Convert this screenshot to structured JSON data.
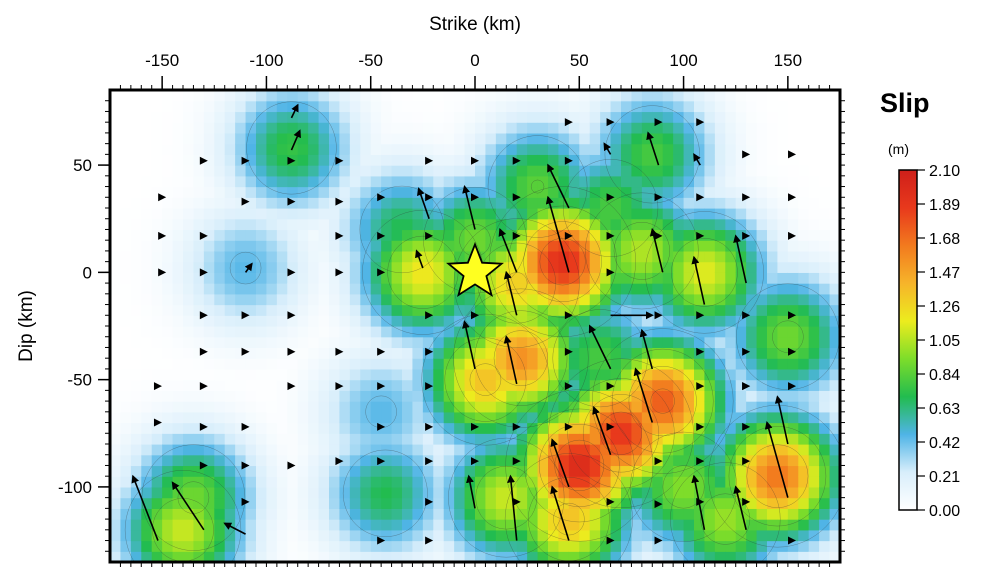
{
  "chart_data": {
    "type": "heatmap",
    "title": "",
    "xlabel": "Strike (km)",
    "ylabel": "Dip (km)",
    "xlim": [
      -175,
      175
    ],
    "ylim": [
      -135,
      85
    ],
    "xticks": [
      -150,
      -100,
      -50,
      0,
      50,
      100,
      150
    ],
    "yticks": [
      50,
      0,
      -50,
      -100
    ],
    "x_axis_position": "top",
    "grid": false,
    "colorbar": {
      "title": "Slip",
      "unit": "(m)",
      "placement": "right",
      "ticks": [
        "2.10",
        "1.89",
        "1.68",
        "1.47",
        "1.26",
        "1.05",
        "0.84",
        "0.63",
        "0.42",
        "0.21",
        "0.00"
      ],
      "range": [
        0,
        2.1
      ],
      "colors": [
        "#ffffff",
        "#d8eefb",
        "#4fb4e6",
        "#22bc4f",
        "#7ddd2a",
        "#ecec1e",
        "#f6b42a",
        "#f27a1e",
        "#e8391c",
        "#cf1f1a"
      ]
    },
    "hypocenter": {
      "x": 0,
      "y": 0,
      "marker": "star",
      "color": "#ffff20"
    },
    "slip_patches": [
      {
        "x": -88,
        "y": 58,
        "slip": 0.75
      },
      {
        "x": -110,
        "y": 2,
        "slip": 0.45
      },
      {
        "x": -45,
        "y": -65,
        "slip": 0.45
      },
      {
        "x": -43,
        "y": -103,
        "slip": 0.7
      },
      {
        "x": -140,
        "y": -120,
        "slip": 1.1
      },
      {
        "x": -135,
        "y": -105,
        "slip": 0.9
      },
      {
        "x": -25,
        "y": 0,
        "slip": 1.2
      },
      {
        "x": -35,
        "y": 20,
        "slip": 0.7
      },
      {
        "x": 0,
        "y": 15,
        "slip": 0.9
      },
      {
        "x": 20,
        "y": -5,
        "slip": 1.3
      },
      {
        "x": 42,
        "y": 5,
        "slip": 1.95
      },
      {
        "x": 22,
        "y": -40,
        "slip": 1.55
      },
      {
        "x": 5,
        "y": -50,
        "slip": 1.35
      },
      {
        "x": 15,
        "y": -105,
        "slip": 1.1
      },
      {
        "x": 45,
        "y": -115,
        "slip": 1.35
      },
      {
        "x": 50,
        "y": -90,
        "slip": 2.0
      },
      {
        "x": 70,
        "y": -75,
        "slip": 1.9
      },
      {
        "x": 90,
        "y": -60,
        "slip": 1.75
      },
      {
        "x": 80,
        "y": 10,
        "slip": 1.05
      },
      {
        "x": 110,
        "y": 0,
        "slip": 1.15
      },
      {
        "x": 85,
        "y": 55,
        "slip": 0.8
      },
      {
        "x": 145,
        "y": -95,
        "slip": 1.65
      },
      {
        "x": 120,
        "y": -115,
        "slip": 1.0
      },
      {
        "x": 150,
        "y": -30,
        "slip": 0.9
      },
      {
        "x": 100,
        "y": -100,
        "slip": 0.95
      },
      {
        "x": 60,
        "y": -40,
        "slip": 0.8
      },
      {
        "x": 30,
        "y": 40,
        "slip": 0.85
      },
      {
        "x": 65,
        "y": 30,
        "slip": 0.8
      }
    ],
    "rake_vectors": [
      {
        "x": -88,
        "y": 72,
        "dx": 3,
        "dy": 6
      },
      {
        "x": -88,
        "y": 57,
        "dx": 4,
        "dy": 9
      },
      {
        "x": -110,
        "y": 0,
        "dx": 3,
        "dy": 4
      },
      {
        "x": -152,
        "y": -125,
        "dx": -12,
        "dy": 30
      },
      {
        "x": -130,
        "y": -120,
        "dx": -15,
        "dy": 22
      },
      {
        "x": -110,
        "y": -122,
        "dx": -10,
        "dy": 5
      },
      {
        "x": -25,
        "y": 2,
        "dx": -3,
        "dy": 8
      },
      {
        "x": -22,
        "y": 25,
        "dx": -5,
        "dy": 14
      },
      {
        "x": 0,
        "y": 20,
        "dx": -5,
        "dy": 20
      },
      {
        "x": 20,
        "y": 0,
        "dx": -8,
        "dy": 20
      },
      {
        "x": 45,
        "y": 0,
        "dx": -10,
        "dy": 35
      },
      {
        "x": 45,
        "y": 30,
        "dx": -10,
        "dy": 20
      },
      {
        "x": 20,
        "y": -20,
        "dx": -5,
        "dy": 20
      },
      {
        "x": 0,
        "y": -45,
        "dx": -5,
        "dy": 22
      },
      {
        "x": 20,
        "y": -52,
        "dx": -5,
        "dy": 22
      },
      {
        "x": 0,
        "y": -110,
        "dx": -3,
        "dy": 15
      },
      {
        "x": 20,
        "y": -125,
        "dx": -3,
        "dy": 30
      },
      {
        "x": 45,
        "y": -125,
        "dx": -8,
        "dy": 25
      },
      {
        "x": 45,
        "y": -100,
        "dx": -8,
        "dy": 22
      },
      {
        "x": 65,
        "y": -85,
        "dx": -8,
        "dy": 22
      },
      {
        "x": 85,
        "y": -70,
        "dx": -8,
        "dy": 25
      },
      {
        "x": 85,
        "y": -45,
        "dx": -5,
        "dy": 18
      },
      {
        "x": 65,
        "y": -45,
        "dx": -10,
        "dy": 20
      },
      {
        "x": 110,
        "y": -120,
        "dx": -5,
        "dy": 25
      },
      {
        "x": 130,
        "y": -120,
        "dx": -5,
        "dy": 20
      },
      {
        "x": 150,
        "y": -105,
        "dx": -10,
        "dy": 35
      },
      {
        "x": 150,
        "y": -80,
        "dx": -5,
        "dy": 22
      },
      {
        "x": 90,
        "y": 0,
        "dx": -5,
        "dy": 20
      },
      {
        "x": 110,
        "y": -15,
        "dx": -5,
        "dy": 22
      },
      {
        "x": 130,
        "y": -5,
        "dx": -5,
        "dy": 22
      },
      {
        "x": 88,
        "y": 50,
        "dx": -5,
        "dy": 15
      },
      {
        "x": 65,
        "y": 55,
        "dx": -3,
        "dy": 5
      },
      {
        "x": 108,
        "y": 50,
        "dx": -3,
        "dy": 5
      },
      {
        "x": 65,
        "y": -20,
        "dx": 20,
        "dy": 0
      }
    ],
    "minor_vectors": [
      {
        "x": -130,
        "y": 52
      },
      {
        "x": -110,
        "y": 52
      },
      {
        "x": -150,
        "y": 35
      },
      {
        "x": -110,
        "y": 33
      },
      {
        "x": -88,
        "y": 33
      },
      {
        "x": -65,
        "y": 33
      },
      {
        "x": -150,
        "y": 17
      },
      {
        "x": -130,
        "y": 17
      },
      {
        "x": -65,
        "y": 17
      },
      {
        "x": -150,
        "y": 0
      },
      {
        "x": -130,
        "y": 0
      },
      {
        "x": -88,
        "y": 0
      },
      {
        "x": -65,
        "y": 0
      },
      {
        "x": -45,
        "y": 0
      },
      {
        "x": -130,
        "y": -20
      },
      {
        "x": -110,
        "y": -20
      },
      {
        "x": -88,
        "y": -20
      },
      {
        "x": -130,
        "y": -37
      },
      {
        "x": -110,
        "y": -37
      },
      {
        "x": -88,
        "y": -37
      },
      {
        "x": -65,
        "y": -37
      },
      {
        "x": -45,
        "y": -37
      },
      {
        "x": -152,
        "y": -53
      },
      {
        "x": -130,
        "y": -53
      },
      {
        "x": -88,
        "y": -53
      },
      {
        "x": -65,
        "y": -53
      },
      {
        "x": -45,
        "y": -53
      },
      {
        "x": -152,
        "y": -70
      },
      {
        "x": -130,
        "y": -72
      },
      {
        "x": -110,
        "y": -72
      },
      {
        "x": -45,
        "y": -72
      },
      {
        "x": -130,
        "y": -90
      },
      {
        "x": -110,
        "y": -90
      },
      {
        "x": -88,
        "y": -90
      },
      {
        "x": -45,
        "y": -88
      },
      {
        "x": -65,
        "y": -88
      },
      {
        "x": -110,
        "y": -107
      },
      {
        "x": -45,
        "y": -125
      },
      {
        "x": -22,
        "y": -125
      },
      {
        "x": -88,
        "y": 52
      },
      {
        "x": -65,
        "y": 52
      },
      {
        "x": -45,
        "y": 35
      },
      {
        "x": 45,
        "y": 70
      },
      {
        "x": 65,
        "y": 70
      },
      {
        "x": 108,
        "y": 70
      },
      {
        "x": 130,
        "y": 55
      },
      {
        "x": 152,
        "y": 55
      },
      {
        "x": 130,
        "y": 35
      },
      {
        "x": 152,
        "y": 35
      },
      {
        "x": 152,
        "y": 17
      },
      {
        "x": 65,
        "y": 35
      },
      {
        "x": 88,
        "y": 35
      },
      {
        "x": 108,
        "y": 35
      },
      {
        "x": 88,
        "y": -125
      },
      {
        "x": 88,
        "y": -108
      },
      {
        "x": 65,
        "y": -125
      },
      {
        "x": 130,
        "y": -53
      },
      {
        "x": 108,
        "y": -53
      },
      {
        "x": 108,
        "y": -72
      },
      {
        "x": 130,
        "y": -72
      },
      {
        "x": 152,
        "y": -53
      },
      {
        "x": 152,
        "y": -37
      },
      {
        "x": 108,
        "y": -37
      },
      {
        "x": 130,
        "y": -37
      },
      {
        "x": 130,
        "y": -20
      },
      {
        "x": 152,
        "y": -20
      },
      {
        "x": 108,
        "y": -20
      },
      {
        "x": 20,
        "y": -72
      },
      {
        "x": 0,
        "y": -72
      },
      {
        "x": -22,
        "y": -72
      },
      {
        "x": -22,
        "y": -53
      },
      {
        "x": -22,
        "y": -37
      },
      {
        "x": -22,
        "y": -20
      },
      {
        "x": 0,
        "y": -20
      },
      {
        "x": -22,
        "y": 35
      },
      {
        "x": -22,
        "y": 52
      },
      {
        "x": 0,
        "y": 35
      },
      {
        "x": 0,
        "y": 52
      },
      {
        "x": 20,
        "y": 52
      },
      {
        "x": 20,
        "y": 35
      },
      {
        "x": 45,
        "y": 52
      },
      {
        "x": 45,
        "y": -20
      },
      {
        "x": 45,
        "y": -37
      },
      {
        "x": 45,
        "y": -53
      },
      {
        "x": 45,
        "y": -72
      },
      {
        "x": 20,
        "y": -88
      },
      {
        "x": 0,
        "y": -88
      },
      {
        "x": -22,
        "y": -88
      },
      {
        "x": -22,
        "y": -107
      },
      {
        "x": 20,
        "y": -107
      },
      {
        "x": 65,
        "y": -107
      },
      {
        "x": 108,
        "y": -107
      },
      {
        "x": 108,
        "y": -88
      },
      {
        "x": 130,
        "y": -88
      },
      {
        "x": 130,
        "y": -107
      },
      {
        "x": 152,
        "y": -125
      },
      {
        "x": 65,
        "y": -53
      },
      {
        "x": 65,
        "y": -72
      },
      {
        "x": 88,
        "y": -88
      },
      {
        "x": 65,
        "y": 17
      },
      {
        "x": 88,
        "y": 17
      },
      {
        "x": 108,
        "y": 17
      },
      {
        "x": 130,
        "y": 17
      },
      {
        "x": 65,
        "y": 0
      },
      {
        "x": 130,
        "y": -53
      },
      {
        "x": 88,
        "y": -20
      },
      {
        "x": 20,
        "y": 17
      },
      {
        "x": 45,
        "y": 17
      },
      {
        "x": -22,
        "y": 17
      },
      {
        "x": -45,
        "y": 17
      },
      {
        "x": 88,
        "y": 70
      }
    ]
  }
}
